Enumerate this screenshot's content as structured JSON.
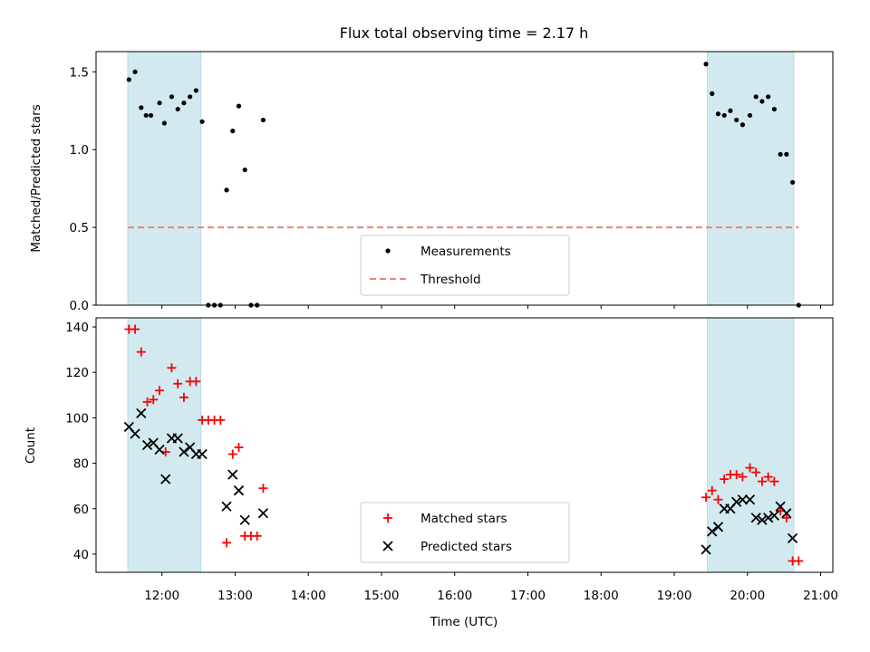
{
  "figure": {
    "title": "Flux total observing time = 2.17 h"
  },
  "chart_data": [
    {
      "type": "scatter",
      "ylabel": "Matched/Predicted stars",
      "xlabel": "",
      "xlim": [
        "11:06",
        "21:10"
      ],
      "ylim": [
        0,
        1.63
      ],
      "yticks": [
        0.0,
        0.5,
        1.0,
        1.5
      ],
      "ytick_labels": [
        "0.0",
        "0.5",
        "1.0",
        "1.5"
      ],
      "grid": false,
      "legend_position": "bottom-center",
      "shaded_intervals": [
        [
          "11:32",
          "12:32"
        ],
        [
          "19:27",
          "20:38"
        ]
      ],
      "shade_color": "#d3e9f0",
      "series": [
        {
          "name": "Measurements",
          "marker": "dot",
          "color": "#000000",
          "points": [
            [
              "11:33",
              1.45
            ],
            [
              "11:38",
              1.5
            ],
            [
              "11:43",
              1.27
            ],
            [
              "11:47",
              1.22
            ],
            [
              "11:51",
              1.22
            ],
            [
              "11:58",
              1.3
            ],
            [
              "12:02",
              1.17
            ],
            [
              "12:08",
              1.34
            ],
            [
              "12:13",
              1.26
            ],
            [
              "12:18",
              1.3
            ],
            [
              "12:23",
              1.34
            ],
            [
              "12:28",
              1.38
            ],
            [
              "12:33",
              1.18
            ],
            [
              "12:38",
              0.0
            ],
            [
              "12:43",
              0.0
            ],
            [
              "12:48",
              0.0
            ],
            [
              "12:53",
              0.74
            ],
            [
              "12:58",
              1.12
            ],
            [
              "13:03",
              1.28
            ],
            [
              "13:08",
              0.87
            ],
            [
              "13:13",
              0.0
            ],
            [
              "13:18",
              0.0
            ],
            [
              "13:23",
              1.19
            ],
            [
              "19:26",
              1.55
            ],
            [
              "19:31",
              1.36
            ],
            [
              "19:36",
              1.23
            ],
            [
              "19:41",
              1.22
            ],
            [
              "19:46",
              1.25
            ],
            [
              "19:51",
              1.19
            ],
            [
              "19:56",
              1.16
            ],
            [
              "20:02",
              1.22
            ],
            [
              "20:07",
              1.34
            ],
            [
              "20:12",
              1.31
            ],
            [
              "20:17",
              1.34
            ],
            [
              "20:22",
              1.26
            ],
            [
              "20:27",
              0.97
            ],
            [
              "20:32",
              0.97
            ],
            [
              "20:37",
              0.79
            ],
            [
              "20:42",
              0.0
            ]
          ]
        },
        {
          "name": "Threshold",
          "line": "dashed",
          "color": "#f08080",
          "points": [
            [
              "11:32",
              0.5
            ],
            [
              "20:42",
              0.5
            ]
          ]
        }
      ]
    },
    {
      "type": "scatter",
      "ylabel": "Count",
      "xlabel": "Time (UTC)",
      "xlim": [
        "11:06",
        "21:10"
      ],
      "ylim": [
        32,
        144
      ],
      "yticks": [
        40,
        60,
        80,
        100,
        120,
        140
      ],
      "xticks": [
        "12:00",
        "13:00",
        "14:00",
        "15:00",
        "16:00",
        "17:00",
        "18:00",
        "19:00",
        "20:00",
        "21:00"
      ],
      "grid": false,
      "legend_position": "bottom-center",
      "shaded_intervals": [
        [
          "11:32",
          "12:32"
        ],
        [
          "19:27",
          "20:38"
        ]
      ],
      "shade_color": "#d3e9f0",
      "series": [
        {
          "name": "Matched stars",
          "marker": "plus",
          "color": "#ff0000",
          "points": [
            [
              "11:33",
              139
            ],
            [
              "11:38",
              139
            ],
            [
              "11:43",
              129
            ],
            [
              "11:48",
              107
            ],
            [
              "11:53",
              108
            ],
            [
              "11:58",
              112
            ],
            [
              "12:03",
              85
            ],
            [
              "12:08",
              122
            ],
            [
              "12:13",
              115
            ],
            [
              "12:18",
              109
            ],
            [
              "12:23",
              116
            ],
            [
              "12:28",
              116
            ],
            [
              "12:33",
              99
            ],
            [
              "12:38",
              99
            ],
            [
              "12:43",
              99
            ],
            [
              "12:48",
              99
            ],
            [
              "12:53",
              45
            ],
            [
              "12:58",
              84
            ],
            [
              "13:03",
              87
            ],
            [
              "13:08",
              48
            ],
            [
              "13:13",
              48
            ],
            [
              "13:18",
              48
            ],
            [
              "13:23",
              69
            ],
            [
              "19:26",
              65
            ],
            [
              "19:31",
              68
            ],
            [
              "19:36",
              64
            ],
            [
              "19:41",
              73
            ],
            [
              "19:46",
              75
            ],
            [
              "19:51",
              75
            ],
            [
              "19:56",
              74
            ],
            [
              "20:02",
              78
            ],
            [
              "20:07",
              76
            ],
            [
              "20:12",
              72
            ],
            [
              "20:17",
              74
            ],
            [
              "20:22",
              72
            ],
            [
              "20:27",
              59
            ],
            [
              "20:32",
              56
            ],
            [
              "20:37",
              37
            ],
            [
              "20:42",
              37
            ]
          ]
        },
        {
          "name": "Predicted stars",
          "marker": "x",
          "color": "#000000",
          "points": [
            [
              "11:33",
              96
            ],
            [
              "11:38",
              93
            ],
            [
              "11:43",
              102
            ],
            [
              "11:48",
              88
            ],
            [
              "11:53",
              89
            ],
            [
              "11:58",
              86
            ],
            [
              "12:03",
              73
            ],
            [
              "12:08",
              91
            ],
            [
              "12:13",
              91
            ],
            [
              "12:18",
              85
            ],
            [
              "12:23",
              87
            ],
            [
              "12:28",
              84
            ],
            [
              "12:33",
              84
            ],
            [
              "12:53",
              61
            ],
            [
              "12:58",
              75
            ],
            [
              "13:03",
              68
            ],
            [
              "13:08",
              55
            ],
            [
              "13:23",
              58
            ],
            [
              "19:26",
              42
            ],
            [
              "19:31",
              50
            ],
            [
              "19:36",
              52
            ],
            [
              "19:41",
              60
            ],
            [
              "19:46",
              60
            ],
            [
              "19:51",
              63
            ],
            [
              "19:56",
              64
            ],
            [
              "20:02",
              64
            ],
            [
              "20:07",
              56
            ],
            [
              "20:12",
              55
            ],
            [
              "20:17",
              56
            ],
            [
              "20:22",
              57
            ],
            [
              "20:27",
              61
            ],
            [
              "20:32",
              58
            ],
            [
              "20:37",
              47
            ]
          ]
        }
      ]
    }
  ]
}
